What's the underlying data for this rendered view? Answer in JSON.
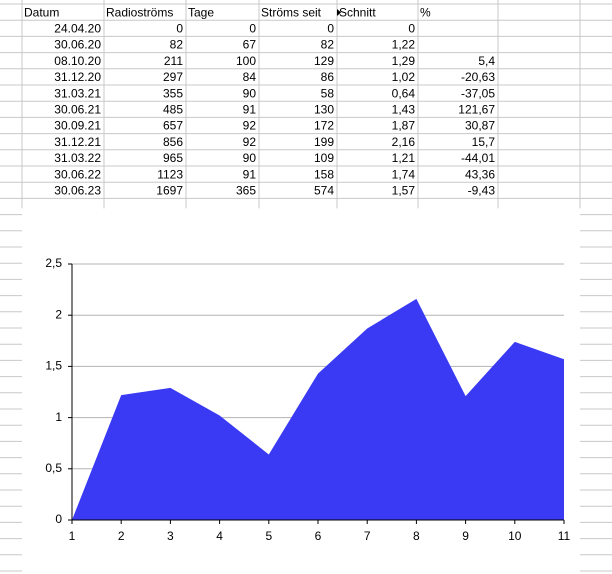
{
  "table": {
    "header": [
      "Datum",
      "Radioströms",
      "Tage",
      "Ströms seit",
      "Schnitt",
      "%"
    ],
    "rows": [
      [
        "24.04.20",
        "0",
        "0",
        "0",
        "0"
      ],
      [
        "30.06.20",
        "82",
        "67",
        "82",
        "1,22"
      ],
      [
        "08.10.20",
        "211",
        "100",
        "129",
        "1,29",
        "5,4"
      ],
      [
        "31.12.20",
        "297",
        "84",
        "86",
        "1,02",
        "-20,63"
      ],
      [
        "31.03.21",
        "355",
        "90",
        "58",
        "0,64",
        "-37,05"
      ],
      [
        "30.06.21",
        "485",
        "91",
        "130",
        "1,43",
        "121,67"
      ],
      [
        "30.09.21",
        "657",
        "92",
        "172",
        "1,87",
        "30,87"
      ],
      [
        "31.12.21",
        "856",
        "92",
        "199",
        "2,16",
        "15,7"
      ],
      [
        "31.03.22",
        "965",
        "90",
        "109",
        "1,21",
        "-44,01"
      ],
      [
        "30.06.22",
        "1123",
        "91",
        "158",
        "1,74",
        "43,36"
      ],
      [
        "30.06.23",
        "1697",
        "365",
        "574",
        "1,57",
        "-9,43"
      ]
    ]
  },
  "chart_data": {
    "type": "area",
    "color": "#3a3af5",
    "x": [
      1,
      2,
      3,
      4,
      5,
      6,
      7,
      8,
      9,
      10,
      11
    ],
    "values": [
      0,
      1.22,
      1.29,
      1.02,
      0.64,
      1.43,
      1.87,
      2.16,
      1.21,
      1.74,
      1.57
    ],
    "xlim": [
      1,
      11
    ],
    "xticks": [
      1,
      2,
      3,
      4,
      5,
      6,
      7,
      8,
      9,
      10,
      11
    ],
    "ylim": [
      0,
      2.5
    ],
    "yticks": [
      0,
      {
        "value": 0.5,
        "label": "0,5"
      },
      1,
      {
        "value": 1.5,
        "label": "1,5"
      },
      2,
      {
        "value": 2.5,
        "label": "2,5"
      }
    ],
    "grid": true
  }
}
